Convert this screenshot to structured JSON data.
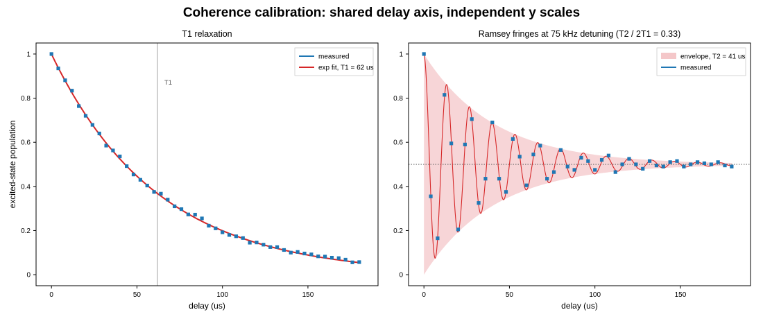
{
  "figure": {
    "title": "Coherence calibration: shared delay axis, independent y scales"
  },
  "chart_data": [
    {
      "type": "scatter",
      "title": "T1 relaxation",
      "xlabel": "delay (us)",
      "ylabel": "excited-state population",
      "xlim": [
        -9,
        191
      ],
      "ylim": [
        -0.05,
        1.05
      ],
      "xticks": [
        0,
        50,
        100,
        150
      ],
      "yticks": [
        0,
        0.2,
        0.4,
        0.6,
        0.8,
        1
      ],
      "ytick_labels": [
        "0",
        "0.2",
        "0.4",
        "0.6",
        "0.8",
        "1"
      ],
      "grid": false,
      "legend": "top-right",
      "legend_entries": [
        {
          "label": "measured",
          "kind": "line",
          "color": "#1f77b4"
        },
        {
          "label": "exp fit, T1 = 62 us",
          "kind": "line",
          "color": "#d62728"
        }
      ],
      "annotations": [
        {
          "type": "vline",
          "x": 62,
          "label": "T1",
          "color": "#999999"
        }
      ],
      "series": [
        {
          "name": "measured",
          "kind": "scatter",
          "color": "#1f77b4",
          "x": [
            0,
            4,
            8,
            12,
            16,
            20,
            24,
            28,
            32,
            36,
            40,
            44,
            48,
            52,
            56,
            60,
            64,
            68,
            72,
            76,
            80,
            84,
            88,
            92,
            96,
            100,
            104,
            108,
            112,
            116,
            120,
            124,
            128,
            132,
            136,
            140,
            144,
            148,
            152,
            156,
            160,
            164,
            168,
            172,
            176,
            180
          ],
          "y": [
            1.0,
            0.935,
            0.881,
            0.834,
            0.764,
            0.72,
            0.679,
            0.64,
            0.585,
            0.563,
            0.536,
            0.492,
            0.454,
            0.43,
            0.404,
            0.375,
            0.367,
            0.34,
            0.31,
            0.297,
            0.273,
            0.272,
            0.255,
            0.222,
            0.21,
            0.192,
            0.18,
            0.174,
            0.166,
            0.145,
            0.146,
            0.136,
            0.125,
            0.125,
            0.112,
            0.1,
            0.103,
            0.096,
            0.092,
            0.083,
            0.082,
            0.077,
            0.075,
            0.068,
            0.056,
            0.057
          ]
        },
        {
          "name": "exp fit, T1 = 62 us",
          "kind": "fit_exp",
          "color": "#d62728",
          "amplitude": 1.0,
          "tau": 62,
          "offset": 0,
          "x_range": [
            0,
            180
          ]
        }
      ]
    },
    {
      "type": "scatter",
      "title": "Ramsey fringes at 75 kHz detuning (T2 / 2T1 = 0.33)",
      "xlabel": "delay (us)",
      "ylabel": "",
      "xlim": [
        -9,
        191
      ],
      "ylim": [
        -0.05,
        1.05
      ],
      "xticks": [
        0,
        50,
        100,
        150
      ],
      "yticks": [
        0,
        0.2,
        0.4,
        0.6,
        0.8,
        1
      ],
      "ytick_labels": [
        "0",
        "0.2",
        "0.4",
        "0.6",
        "0.8",
        "1"
      ],
      "grid": false,
      "legend": "top-right",
      "legend_entries": [
        {
          "label": "envelope, T2 = 41 us",
          "kind": "patch",
          "color": "#f4c7c9"
        },
        {
          "label": "measured",
          "kind": "line",
          "color": "#1f77b4"
        }
      ],
      "annotations": [
        {
          "type": "hline",
          "y": 0.5,
          "color": "#555555",
          "style": "dotted"
        }
      ],
      "series": [
        {
          "name": "envelope, T2 = 41 us",
          "kind": "envelope",
          "color": "#f4c7c9",
          "center": 0.5,
          "amplitude": 0.5,
          "tau": 41,
          "x_range": [
            0,
            180
          ]
        },
        {
          "name": "fit",
          "kind": "fit_ramsey",
          "color": "#d62728",
          "center": 0.5,
          "amplitude": 0.5,
          "tau": 41,
          "detuning_mhz": 0.075,
          "x_range": [
            0,
            180
          ]
        },
        {
          "name": "measured",
          "kind": "scatter",
          "color": "#1f77b4",
          "x": [
            0,
            4,
            8,
            12,
            16,
            20,
            24,
            28,
            32,
            36,
            40,
            44,
            48,
            52,
            56,
            60,
            64,
            68,
            72,
            76,
            80,
            84,
            88,
            92,
            96,
            100,
            104,
            108,
            112,
            116,
            120,
            124,
            128,
            132,
            136,
            140,
            144,
            148,
            152,
            156,
            160,
            164,
            168,
            172,
            176,
            180
          ],
          "y": [
            1.0,
            0.355,
            0.165,
            0.815,
            0.595,
            0.205,
            0.59,
            0.705,
            0.325,
            0.435,
            0.69,
            0.435,
            0.375,
            0.615,
            0.535,
            0.405,
            0.545,
            0.585,
            0.435,
            0.465,
            0.565,
            0.49,
            0.475,
            0.53,
            0.515,
            0.475,
            0.52,
            0.54,
            0.465,
            0.5,
            0.525,
            0.5,
            0.48,
            0.515,
            0.495,
            0.49,
            0.51,
            0.515,
            0.49,
            0.5,
            0.51,
            0.505,
            0.5,
            0.51,
            0.495,
            0.49
          ]
        }
      ]
    }
  ]
}
